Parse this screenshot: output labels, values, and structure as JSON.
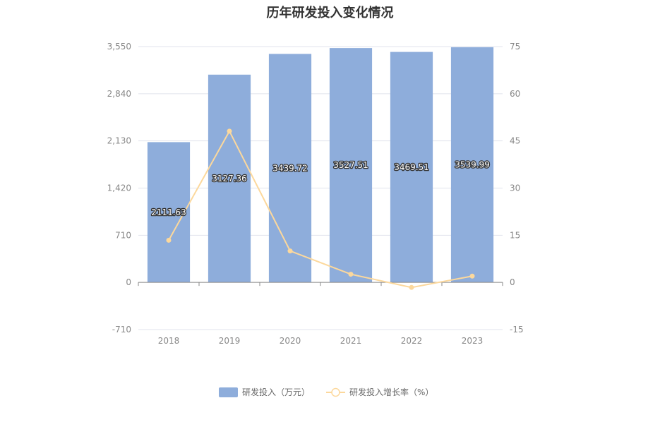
{
  "chart_data": {
    "type": "bar",
    "title": "历年研发投入变化情况",
    "categories": [
      "2018",
      "2019",
      "2020",
      "2021",
      "2022",
      "2023"
    ],
    "series": [
      {
        "name": "研发投入（万元）",
        "type": "bar",
        "axis": "left",
        "values": [
          2111.63,
          3127.36,
          3439.72,
          3527.51,
          3469.51,
          3539.99
        ],
        "data_labels": [
          "2111.63",
          "3127.36",
          "3439.72",
          "3527.51",
          "3469.51",
          "3539.99"
        ]
      },
      {
        "name": "研发投入增长率（%）",
        "type": "line",
        "axis": "right",
        "values": [
          13.4,
          48.1,
          10.0,
          2.6,
          -1.6,
          2.0
        ]
      }
    ],
    "y_left": {
      "ylim": [
        -710,
        3550
      ],
      "ticks": [
        "3,550",
        "2,840",
        "2,130",
        "1,420",
        "710",
        "0",
        "-710"
      ]
    },
    "y_right": {
      "ylim": [
        -15,
        75
      ],
      "ticks": [
        "75",
        "60",
        "45",
        "30",
        "15",
        "0",
        "-15"
      ]
    },
    "legend_position": "bottom",
    "colors": {
      "bar": "#8eaddb",
      "line": "#fcd89c",
      "grid": "#e0e3ec",
      "axis": "#888888"
    }
  }
}
